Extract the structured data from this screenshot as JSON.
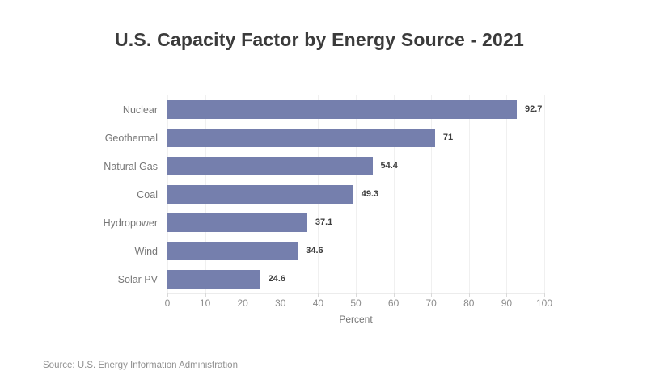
{
  "chart_data": {
    "type": "bar",
    "orientation": "horizontal",
    "title": "U.S. Capacity Factor by Energy Source - 2021",
    "categories": [
      "Nuclear",
      "Geothermal",
      "Natural Gas",
      "Coal",
      "Hydropower",
      "Wind",
      "Solar PV"
    ],
    "values": [
      92.7,
      71,
      54.4,
      49.3,
      37.1,
      34.6,
      24.6
    ],
    "value_labels": [
      "92.7",
      "71",
      "54.4",
      "49.3",
      "37.1",
      "34.6",
      "24.6"
    ],
    "xlabel": "Percent",
    "ylabel": "",
    "xlim": [
      0,
      100
    ],
    "xticks": [
      0,
      10,
      20,
      30,
      40,
      50,
      60,
      70,
      80,
      90,
      100
    ],
    "grid": "vertical",
    "legend": "none",
    "bar_color": "#757fad"
  },
  "footer": {
    "source": "Source: U.S. Energy Information Administration"
  }
}
